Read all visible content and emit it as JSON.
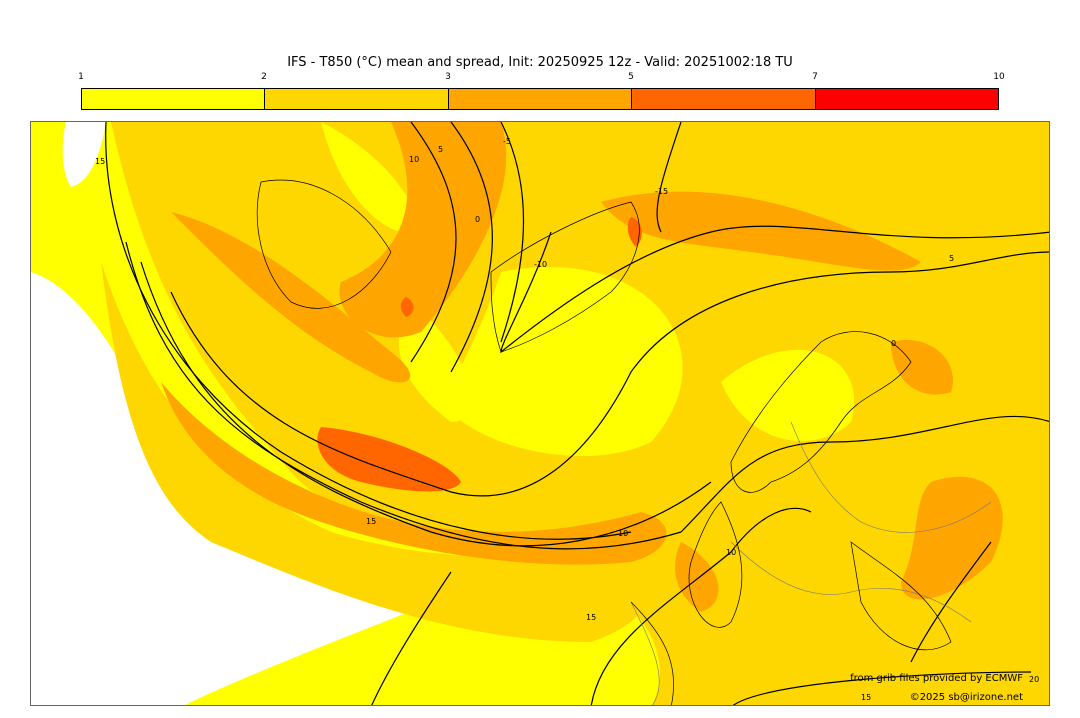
{
  "title": "IFS - T850 (°C) mean and spread, Init: 20250925 12z - Valid: 20251002:18 TU",
  "colorbar": {
    "ticks": [
      "1",
      "2",
      "3",
      "5",
      "7",
      "10"
    ],
    "colors": [
      "#ffff00",
      "#ffd700",
      "#ffa500",
      "#ff6600",
      "#ff0000"
    ]
  },
  "contour_labels": [
    "15",
    "10",
    "5",
    "0",
    "-5",
    "-10",
    "-15",
    "5",
    "0",
    "15",
    "10",
    "10",
    "15",
    "20",
    "15"
  ],
  "credits": {
    "source": "from grib files provided by ECMWF",
    "copyright": "©2025 sb@irizone.net"
  }
}
